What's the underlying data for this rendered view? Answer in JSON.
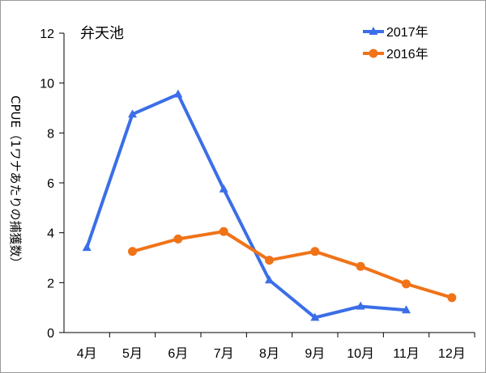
{
  "chart_data": {
    "type": "line",
    "title": "弁天池",
    "ylabel": "CPUE（1ワナあたりの捕獲数）",
    "xlabel": "",
    "ylim": [
      0,
      12
    ],
    "yticks": [
      0,
      2,
      4,
      6,
      8,
      10,
      12
    ],
    "categories": [
      "4月",
      "5月",
      "6月",
      "7月",
      "8月",
      "9月",
      "10月",
      "11月",
      "12月"
    ],
    "legend_position": "top-right",
    "grid": false,
    "series": [
      {
        "name": "2017年",
        "color": "#3b6ee8",
        "marker": "triangle",
        "points": [
          {
            "x": 4.0,
            "y": 3.4
          },
          {
            "x": 5.0,
            "y": 8.75
          },
          {
            "x": 6.0,
            "y": 9.55
          },
          {
            "x": 7.0,
            "y": 5.75
          },
          {
            "x": 8.0,
            "y": 2.1
          },
          {
            "x": 9.0,
            "y": 0.6
          },
          {
            "x": 10.0,
            "y": 1.05
          },
          {
            "x": 11.0,
            "y": 0.9
          }
        ]
      },
      {
        "name": "2016年",
        "color": "#f07318",
        "marker": "circle",
        "points": [
          {
            "x": 5.0,
            "y": 3.25
          },
          {
            "x": 6.0,
            "y": 3.75
          },
          {
            "x": 7.0,
            "y": 4.05
          },
          {
            "x": 8.0,
            "y": 2.9
          },
          {
            "x": 9.0,
            "y": 3.25
          },
          {
            "x": 10.0,
            "y": 2.65
          },
          {
            "x": 11.0,
            "y": 1.95
          },
          {
            "x": 12.0,
            "y": 1.4
          }
        ]
      }
    ]
  }
}
